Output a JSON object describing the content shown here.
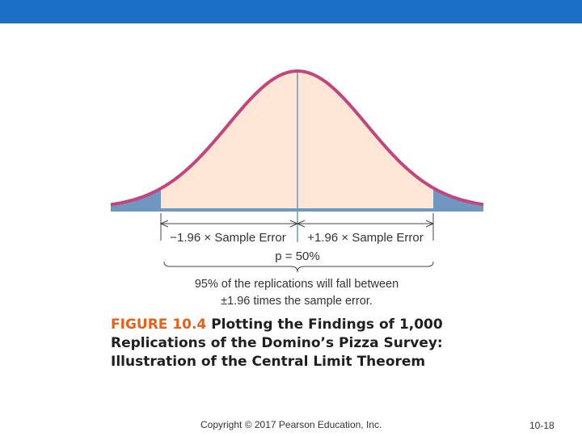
{
  "figure": {
    "label_minus": "−1.96 × Sample Error",
    "label_plus": "+1.96 × Sample Error",
    "center_label": "p = 50%",
    "note_line1": "95% of the replications will fall between",
    "note_line2": "±1.96 times the sample error.",
    "colors": {
      "curve": "#c2457e",
      "fill_center": "#fde6d4",
      "fill_tails": "#6f97bf",
      "axis": "#6f97bf",
      "center_line": "#6f97bf"
    }
  },
  "caption": {
    "number": "FIGURE 10.4",
    "title": "Plotting the Findings of 1,000 Replications of the Domino’s Pizza Survey: Illustration of the Central Limit Theorem"
  },
  "footer": {
    "copyright": "Copyright © 2017 Pearson Education, Inc.",
    "page": "10-18"
  }
}
